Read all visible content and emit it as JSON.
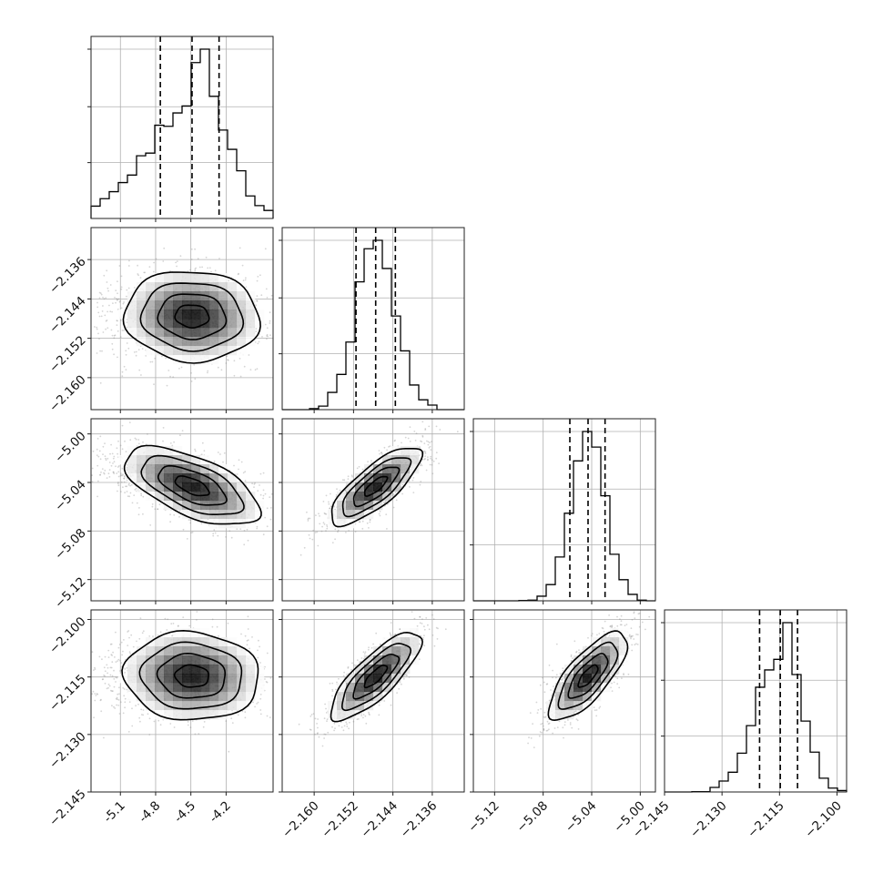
{
  "chart_data": {
    "type": "corner",
    "grid": true,
    "params": [
      {
        "range": [
          -5.35,
          -3.8
        ],
        "ticks": [
          "-5.1",
          "-4.8",
          "-4.5",
          "-4.2"
        ],
        "tick_values": [
          -5.1,
          -4.8,
          -4.5,
          -4.2
        ],
        "median": -4.49,
        "q16": -4.76,
        "q84": -4.26,
        "sigma": 0.25,
        "skew": -0.6
      },
      {
        "range": [
          -2.1665,
          -2.1295
        ],
        "ticks": [
          "−2.136",
          "−2.144",
          "−2.152",
          "−2.160"
        ],
        "tick_values": [
          -2.136,
          -2.144,
          -2.152,
          -2.16
        ],
        "bottom_ticks": [
          "−2.160",
          "−2.152",
          "−2.144",
          "−2.136"
        ],
        "bottom_tick_values": [
          -2.16,
          -2.152,
          -2.144,
          -2.136
        ],
        "median": -2.1475,
        "q16": -2.1515,
        "q84": -2.1435,
        "sigma": 0.004,
        "skew": 0.0
      },
      {
        "range": [
          -5.1375,
          -4.9875
        ],
        "ticks": [
          "−5.00",
          "−5.04",
          "−5.08",
          "−5.12"
        ],
        "tick_values": [
          -5.0,
          -5.04,
          -5.08,
          -5.12
        ],
        "bottom_ticks": [
          "−5.12",
          "−5.08",
          "−5.04",
          "−5.00"
        ],
        "bottom_tick_values": [
          -5.12,
          -5.08,
          -5.04,
          -5.0
        ],
        "median": -5.043,
        "q16": -5.058,
        "q84": -5.029,
        "sigma": 0.014,
        "skew": 0.0
      },
      {
        "range": [
          -2.145,
          -2.0975
        ],
        "ticks": [
          "−2.100",
          "−2.115",
          "−2.130",
          "−2.145"
        ],
        "tick_values": [
          -2.1,
          -2.115,
          -2.13,
          -2.145
        ],
        "bottom_ticks": [
          "−2.145",
          "−2.130",
          "−2.115",
          "−2.100"
        ],
        "bottom_tick_values": [
          -2.145,
          -2.13,
          -2.115,
          -2.1
        ],
        "median": -2.1148,
        "q16": -2.1202,
        "q84": -2.1103,
        "sigma": 0.005,
        "skew": -0.3
      }
    ],
    "correlations": {
      "1,0": -0.05,
      "2,0": -0.6,
      "2,1": 0.78,
      "3,0": -0.05,
      "3,1": 0.8,
      "3,2": 0.75
    },
    "bins": 20,
    "colors": {
      "hist": "#000000",
      "points": "#888888",
      "density_max": "#000000"
    }
  }
}
